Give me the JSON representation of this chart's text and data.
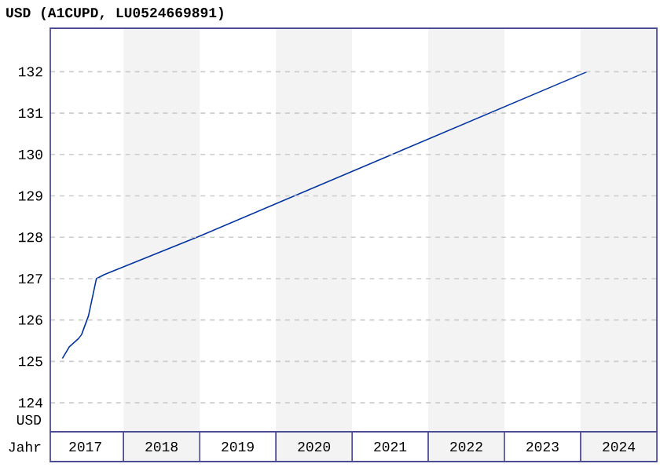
{
  "chart_data": {
    "type": "line",
    "title": "USD (A1CUPD, LU0524669891)",
    "xlabel": "Jahr",
    "ylabel": "USD",
    "x": [
      "2017-03-14",
      "2017-04-16",
      "2017-05-30",
      "2017-06-14",
      "2017-07-17",
      "2017-08-24",
      "2017-10-01",
      "2019-01-01",
      "2024-02-01"
    ],
    "series": [
      {
        "color": "#0033a0",
        "values": [
          125.07,
          125.35,
          125.55,
          125.65,
          126.1,
          127.0,
          127.1,
          128.03,
          132.0
        ]
      }
    ],
    "xlim": [
      "2017-01-15",
      "2025-01-01"
    ],
    "xticks": [
      {
        "value": "2017-07-02",
        "label": "2017"
      },
      {
        "value": "2018-07-02",
        "label": "2018"
      },
      {
        "value": "2019-07-02",
        "label": "2019"
      },
      {
        "value": "2020-07-02",
        "label": "2020"
      },
      {
        "value": "2021-07-02",
        "label": "2021"
      },
      {
        "value": "2022-07-02",
        "label": "2022"
      },
      {
        "value": "2023-07-02",
        "label": "2023"
      },
      {
        "value": "2024-07-02",
        "label": "2024"
      }
    ],
    "ylim": [
      123.3,
      133.05
    ],
    "yticks": [
      124,
      125,
      126,
      127,
      128,
      129,
      130,
      131,
      132
    ],
    "bands": [
      {
        "axis": "x",
        "from": "2018-01-01",
        "to": "2019-01-01",
        "color": "#f3f3f3"
      },
      {
        "axis": "x",
        "from": "2020-01-01",
        "to": "2021-01-01",
        "color": "#f3f3f3"
      },
      {
        "axis": "x",
        "from": "2022-01-01",
        "to": "2023-01-01",
        "color": "#f3f3f3"
      },
      {
        "axis": "x",
        "from": "2024-01-01",
        "to": "2025-01-01",
        "color": "#f3f3f3"
      }
    ],
    "grid": "y",
    "marker": "none",
    "line_style": "solid"
  }
}
